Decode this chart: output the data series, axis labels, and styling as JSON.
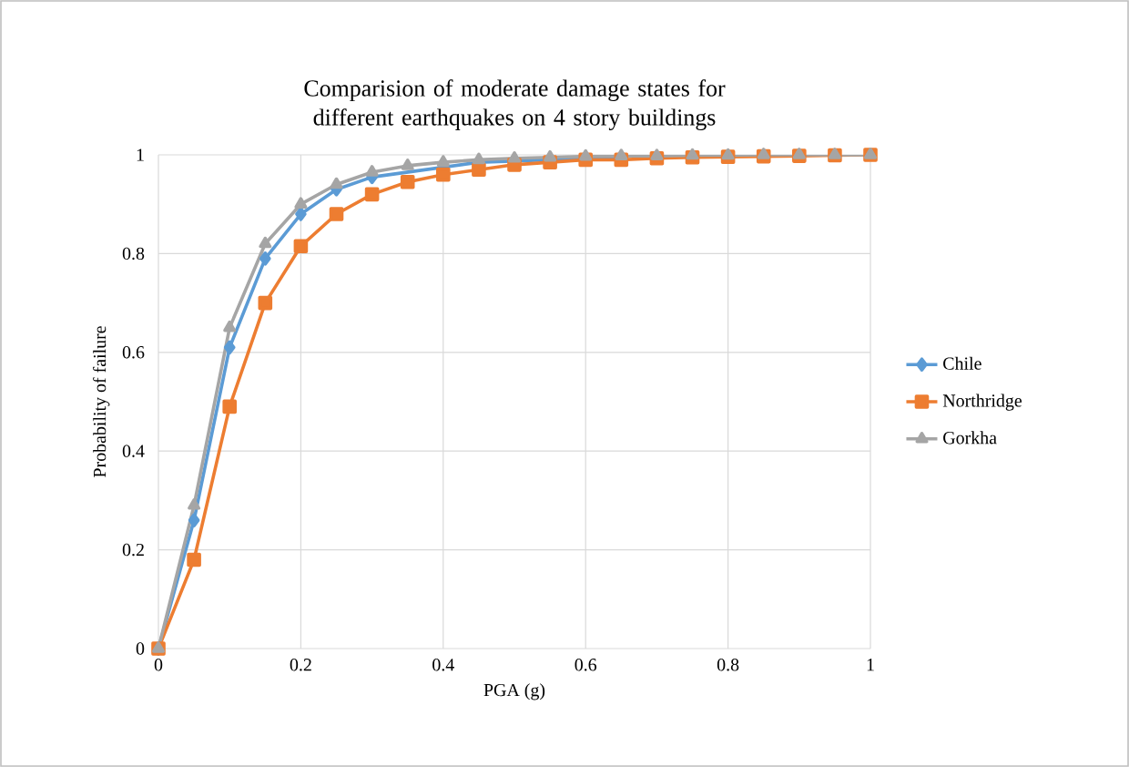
{
  "chart_data": {
    "type": "line",
    "title": "Comparision of moderate damage states for different earthquakes on 4 story buildings",
    "xlabel": "PGA (g)",
    "ylabel": "Probability of failure",
    "x": [
      0,
      0.05,
      0.1,
      0.15,
      0.2,
      0.25,
      0.3,
      0.35,
      0.4,
      0.45,
      0.5,
      0.55,
      0.6,
      0.65,
      0.7,
      0.75,
      0.8,
      0.85,
      0.9,
      0.95,
      1
    ],
    "series": [
      {
        "name": "Chile",
        "color": "#5b9bd5",
        "marker": "diamond",
        "values": [
          0,
          0.26,
          0.61,
          0.79,
          0.88,
          0.93,
          0.955,
          null,
          null,
          0.985,
          null,
          0.99,
          null,
          0.995,
          null,
          null,
          null,
          null,
          null,
          null,
          null
        ]
      },
      {
        "name": "Northridge",
        "color": "#ed7d31",
        "marker": "square",
        "values": [
          0,
          0.18,
          0.49,
          0.7,
          0.815,
          0.88,
          0.92,
          0.945,
          0.96,
          0.97,
          0.98,
          0.985,
          0.99,
          0.99,
          0.993,
          0.995,
          0.996,
          0.997,
          0.998,
          0.999,
          1.0
        ]
      },
      {
        "name": "Gorkha",
        "color": "#a5a5a5",
        "marker": "triangle",
        "values": [
          0,
          0.29,
          0.65,
          0.82,
          0.9,
          0.94,
          0.965,
          0.978,
          0.985,
          0.99,
          0.993,
          0.995,
          0.997,
          0.998,
          0.998,
          0.999,
          0.999,
          1.0,
          1.0,
          1.0,
          1.0
        ]
      }
    ],
    "xlim": [
      0,
      1
    ],
    "ylim": [
      0,
      1
    ],
    "xticks": [
      0,
      0.2,
      0.4,
      0.6,
      0.8,
      1
    ],
    "yticks": [
      0,
      0.2,
      0.4,
      0.6,
      0.8,
      1
    ],
    "grid": true,
    "legend": "right",
    "line_style": "solid"
  }
}
